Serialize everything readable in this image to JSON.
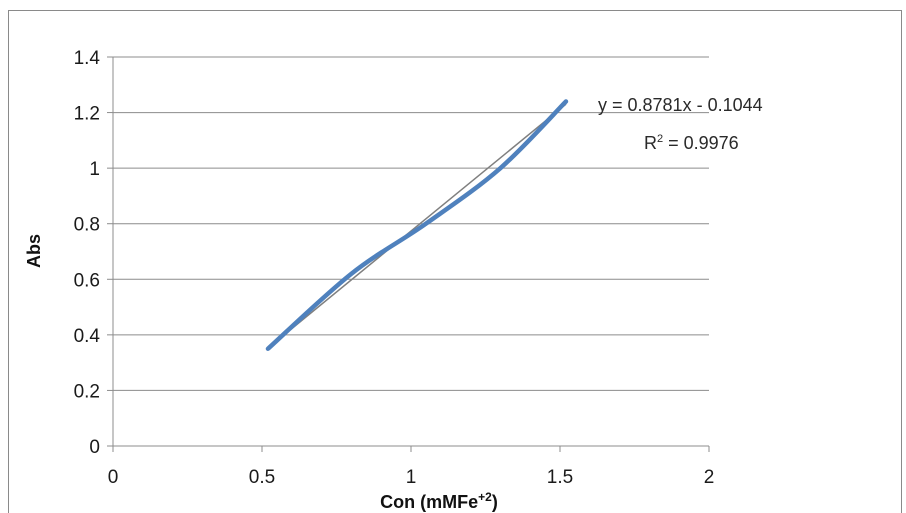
{
  "chart_data": {
    "type": "line",
    "title": "",
    "xlabel": "Con (mMFe",
    "xlabel_superscript": "+2",
    "xlabel_suffix": ")",
    "ylabel": "Abs",
    "xlim": [
      0,
      2
    ],
    "ylim": [
      0,
      1.4
    ],
    "x_ticks": [
      0,
      0.5,
      1,
      1.5,
      2
    ],
    "x_tick_labels": [
      "0",
      "0.5",
      "1",
      "1.5",
      "2"
    ],
    "y_ticks": [
      0,
      0.2,
      0.4,
      0.6,
      0.8,
      1,
      1.2,
      1.4
    ],
    "y_tick_labels": [
      "0",
      "0.2",
      "0.4",
      "0.6",
      "0.8",
      "1",
      "1.2",
      "1.4"
    ],
    "grid": "horizontal",
    "series": [
      {
        "color": "#4f81bd",
        "x": [
          0.52,
          0.8,
          1.05,
          1.3,
          1.52
        ],
        "y": [
          0.35,
          0.62,
          0.8,
          1.0,
          1.24
        ]
      }
    ],
    "trendline": {
      "color": "#7f7f7f",
      "slope": 0.8781,
      "intercept": -0.1044,
      "x_range": [
        0.52,
        1.52
      ]
    },
    "annotations": {
      "equation": "y = 0.8781x - 0.1044",
      "r2_prefix": "R",
      "r2_superscript": "2",
      "r2_value": " = 0.9976"
    }
  }
}
